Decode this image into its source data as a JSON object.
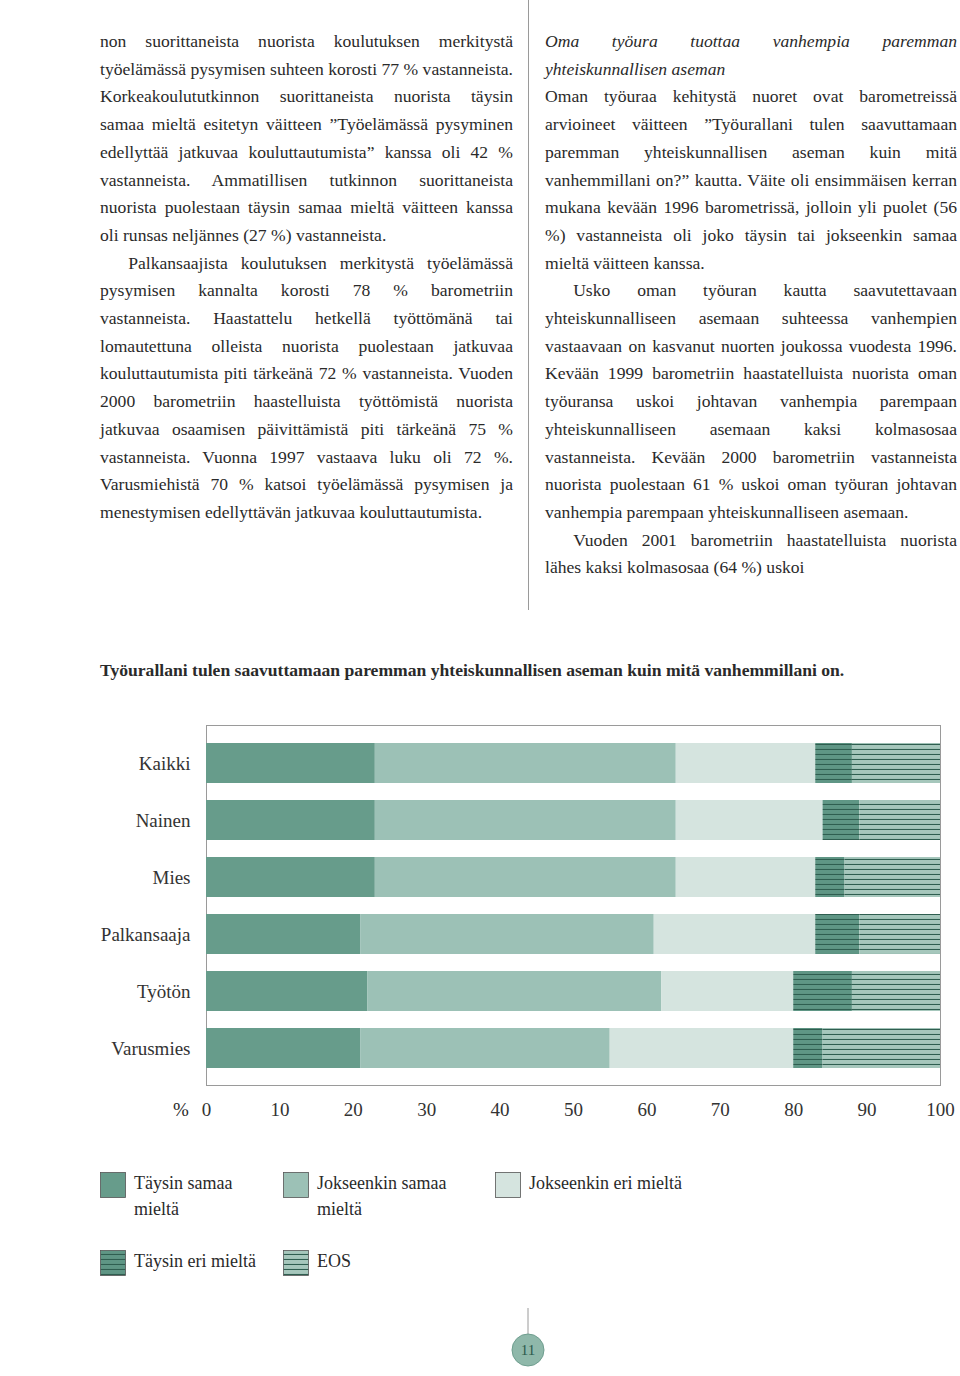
{
  "left_column": {
    "paragraphs": [
      "non suorittaneista nuorista koulutuksen merkitystä työelämässä pysymisen suhteen korosti 77 % vastanneista. Korkeakoulututkinnon suorittaneista nuorista täysin samaa mieltä esitetyn väitteen ”Työelämässä pysyminen edellyttää jatkuvaa kouluttautumista” kanssa oli 42 % vastanneista. Ammatillisen tutkinnon suorittaneista nuorista puolestaan täysin samaa mieltä väitteen kanssa oli runsas neljännes (27 %) vastanneista.",
      "Palkansaajista koulutuksen merkitystä työelämässä pysymisen kannalta korosti 78 % barometriin vastanneista. Haastattelu hetkellä työttömänä tai lomautettuna olleista nuorista puolestaan jatkuvaa kouluttautumista piti tärkeänä 72 % vastanneista. Vuoden 2000 barometriin haastelluista työttömistä nuorista jatkuvaa osaamisen päivittämistä piti tärkeänä 75 % vastanneista. Vuonna 1997 vastaava luku oli 72 %. Varusmiehistä 70 % katsoi työelämässä pysymisen ja menestymisen edellyttävän jatkuvaa kouluttautumista."
    ]
  },
  "right_column": {
    "heading": "Oma työura tuottaa vanhempia paremman yhteiskunnallisen aseman",
    "paragraphs": [
      "Oman työuraa kehitystä nuoret ovat barometreissä arvioineet väitteen ”Työurallani tulen saavuttamaan paremman yhteiskunnallisen aseman kuin mitä vanhemmillani on?” kautta. Väite oli ensimmäisen kerran mukana kevään 1996 barometrissä, jolloin yli puolet (56 %) vastanneista oli joko täysin tai jokseenkin samaa mieltä väitteen kanssa.",
      "Usko oman työuran kautta saavutettavaan yhteiskunnalliseen asemaan suhteessa vanhempien vastaavaan on kasvanut nuorten joukossa vuodesta 1996. Kevään 1999 barometriin haastatelluista nuorista oman työuransa uskoi johtavan vanhempia parempaan yhteiskunnalliseen asemaan kaksi kolmasosaa vastanneista. Kevään 2000 barometriin vastanneista nuorista puolestaan 61 % uskoi oman työuran johtavan vanhempia parempaan yhteiskunnalliseen asemaan.",
      "Vuoden 2001 barometriin haastatelluista nuorista lähes kaksi kolmasosaa (64 %) uskoi"
    ]
  },
  "chart_data": {
    "type": "bar",
    "orientation": "horizontal",
    "stacked": true,
    "title": "Työurallani tulen saavuttamaan paremman yhteiskunnallisen aseman kuin mitä vanhemmillani on.",
    "x_label": "%",
    "categories": [
      "Kaikki",
      "Nainen",
      "Mies",
      "Palkansaaja",
      "Työtön",
      "Varusmies"
    ],
    "series": [
      {
        "name": "Täysin samaa mieltä",
        "color": "#679c8b",
        "values": [
          23,
          23,
          23,
          21,
          22,
          21
        ]
      },
      {
        "name": "Jokseenkin samaa mieltä",
        "color": "#9cc1b6",
        "values": [
          41,
          41,
          41,
          40,
          40,
          34
        ]
      },
      {
        "name": "Jokseenkin eri mieltä",
        "color": "#d5e4df",
        "values": [
          19,
          20,
          19,
          22,
          18,
          25
        ]
      },
      {
        "name": "Täysin eri mieltä",
        "color": "#5f9685",
        "line_style": "hatched",
        "values": [
          5,
          5,
          4,
          6,
          8,
          4
        ]
      },
      {
        "name": "EOS",
        "color": "#a6c7bc",
        "line_style": "hatched",
        "values": [
          12,
          11,
          13,
          11,
          12,
          16
        ]
      }
    ],
    "xlim": [
      0,
      100
    ],
    "xticks": [
      0,
      10,
      20,
      30,
      40,
      50,
      60,
      70,
      80,
      90,
      100
    ],
    "legend": "bottom"
  },
  "page_number": "11"
}
